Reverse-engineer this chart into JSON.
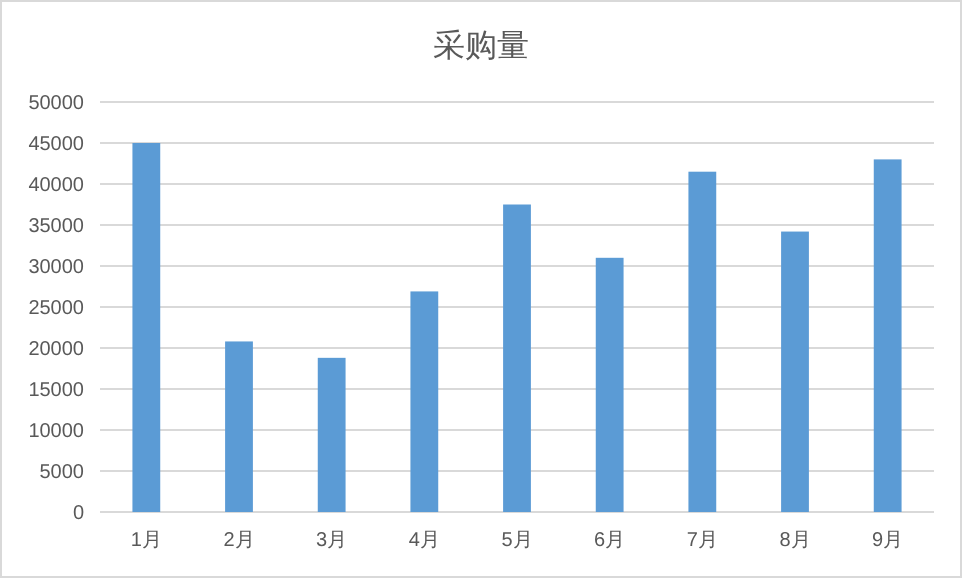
{
  "chart_data": {
    "type": "bar",
    "title": "采购量",
    "categories": [
      "1月",
      "2月",
      "3月",
      "4月",
      "5月",
      "6月",
      "7月",
      "8月",
      "9月"
    ],
    "values": [
      45000,
      20800,
      18800,
      26900,
      37500,
      31000,
      41500,
      34200,
      43000
    ],
    "color": "#5b9bd5",
    "ylim": [
      0,
      50000
    ],
    "yticks": [
      0,
      5000,
      10000,
      15000,
      20000,
      25000,
      30000,
      35000,
      40000,
      45000,
      50000
    ],
    "grid": "y"
  }
}
